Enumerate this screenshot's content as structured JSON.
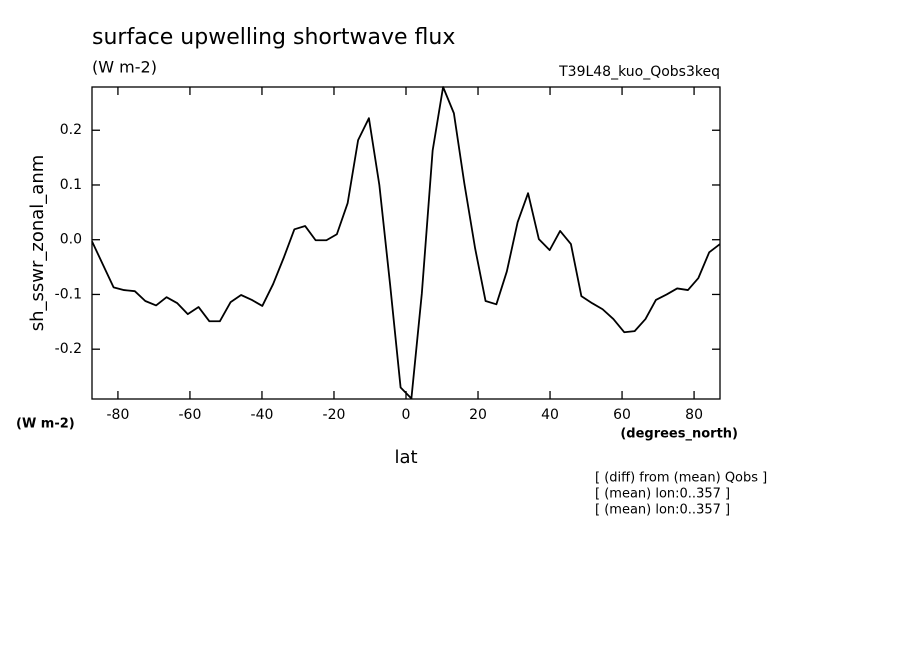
{
  "chart_data": {
    "type": "line",
    "title": "surface upwelling shortwave flux",
    "units": "(W m-2)",
    "dataset": "T39L48_kuo_Qobs3keq",
    "y_label": "sh_sswr_zonal_anm",
    "y_units": "(W m-2)",
    "x_units": "(degrees_north)",
    "x_label": "lat",
    "notes": [
      "[ (diff) from (mean) Qobs ]",
      "[ (mean) lon:0..357 ]",
      "[ (mean) lon:0..357 ]"
    ],
    "x": [
      -87.2,
      -84.2,
      -81.2,
      -78.3,
      -75.3,
      -72.4,
      -69.4,
      -66.5,
      -63.5,
      -60.6,
      -57.6,
      -54.6,
      -51.7,
      -48.7,
      -45.8,
      -42.8,
      -39.9,
      -36.9,
      -33.9,
      -31.0,
      -28.0,
      -25.1,
      -22.1,
      -19.2,
      -16.2,
      -13.3,
      -10.3,
      -7.4,
      -4.4,
      -1.5,
      1.5,
      4.4,
      7.4,
      10.3,
      13.3,
      16.2,
      19.2,
      22.1,
      25.1,
      28.0,
      31.0,
      33.9,
      36.9,
      39.9,
      42.8,
      45.8,
      48.7,
      51.7,
      54.6,
      57.6,
      60.6,
      63.5,
      66.5,
      69.4,
      72.4,
      75.3,
      78.3,
      81.2,
      84.2,
      87.2
    ],
    "series": [
      {
        "name": "sh_sswr_zonal_anm",
        "color": "#000000",
        "values": [
          -0.003,
          -0.045,
          -0.087,
          -0.092,
          -0.094,
          -0.112,
          -0.12,
          -0.105,
          -0.116,
          -0.136,
          -0.123,
          -0.149,
          -0.149,
          -0.114,
          -0.101,
          -0.11,
          -0.121,
          -0.081,
          -0.032,
          0.019,
          0.025,
          -0.001,
          -0.001,
          0.01,
          0.067,
          0.182,
          0.222,
          0.1,
          -0.083,
          -0.27,
          -0.29,
          -0.098,
          0.163,
          0.279,
          0.231,
          0.103,
          -0.016,
          -0.112,
          -0.118,
          -0.058,
          0.032,
          0.085,
          0.001,
          -0.019,
          0.016,
          -0.008,
          -0.103,
          -0.116,
          -0.127,
          -0.145,
          -0.169,
          -0.167,
          -0.145,
          -0.11,
          -0.1,
          -0.089,
          -0.092,
          -0.07,
          -0.023,
          -0.008
        ]
      }
    ],
    "xlim": [
      -87.2,
      87.2
    ],
    "ylim": [
      -0.291,
      0.279
    ],
    "xticks": [
      -80,
      -60,
      -40,
      -20,
      0,
      20,
      40,
      60,
      80
    ],
    "yticks": [
      -0.2,
      -0.1,
      {
        "value": 0,
        "label": "0.0"
      },
      0.1,
      0.2
    ]
  }
}
